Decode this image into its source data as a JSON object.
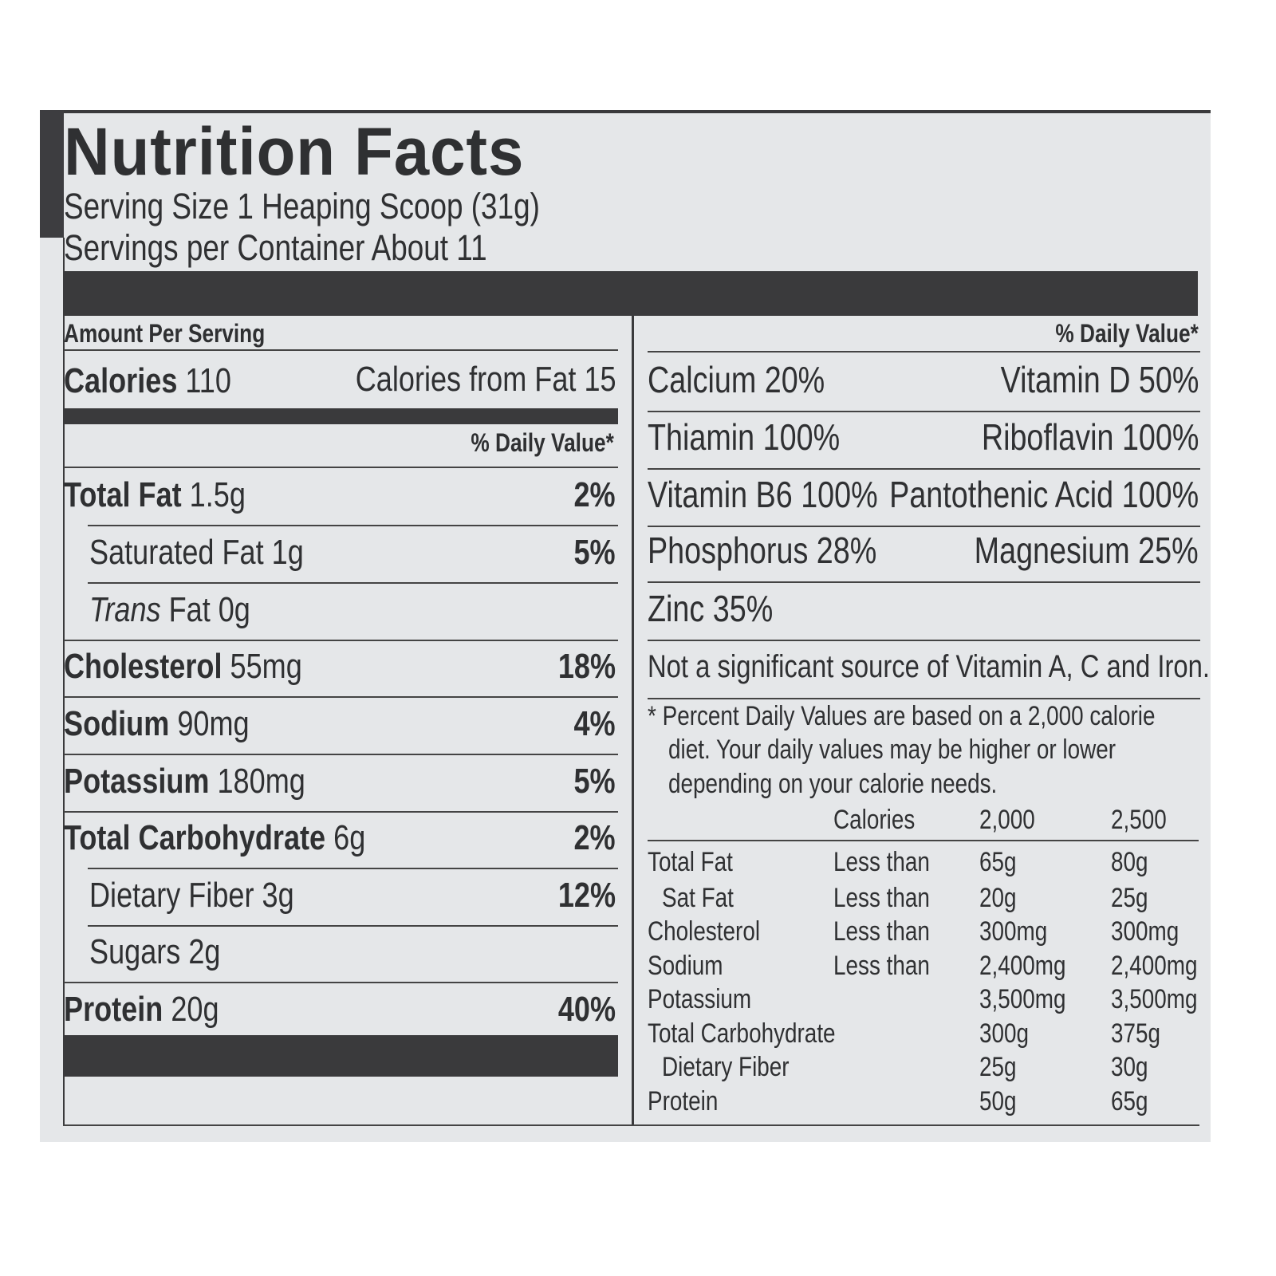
{
  "title": "Nutrition Facts",
  "serving_size": "Serving Size 1 Heaping Scoop (31g)",
  "servings_per_container": "Servings per Container About 11",
  "amount_per_serving": "Amount Per Serving",
  "calories": {
    "label": "Calories",
    "value": "110",
    "from_fat": "Calories from Fat 15"
  },
  "daily_value_header": "% Daily Value*",
  "nutrients": [
    {
      "bold": "Total Fat",
      "amount": "1.5g",
      "dv": "2%",
      "indent": false
    },
    {
      "bold": "",
      "amount": "Saturated Fat 1g",
      "dv": "5%",
      "indent": true
    },
    {
      "italic": "Trans",
      "amount": "Fat 0g",
      "dv": "",
      "indent": true
    },
    {
      "bold": "Cholesterol",
      "amount": "55mg",
      "dv": "18%",
      "indent": false
    },
    {
      "bold": "Sodium",
      "amount": "90mg",
      "dv": "4%",
      "indent": false
    },
    {
      "bold": "Potassium",
      "amount": "180mg",
      "dv": "5%",
      "indent": false
    },
    {
      "bold": "Total Carbohydrate",
      "amount": "6g",
      "dv": "2%",
      "indent": false
    },
    {
      "bold": "",
      "amount": "Dietary Fiber 3g",
      "dv": "12%",
      "indent": true
    },
    {
      "bold": "",
      "amount": "Sugars 2g",
      "dv": "",
      "indent": true
    },
    {
      "bold": "Protein",
      "amount": "20g",
      "dv": "40%",
      "indent": false
    }
  ],
  "vitamins_header": "% Daily Value*",
  "vitamins": [
    [
      "Calcium 20%",
      "Vitamin D 50%"
    ],
    [
      "Thiamin 100%",
      "Riboflavin 100%"
    ],
    [
      "Vitamin B6 100%",
      "Pantothenic Acid 100%"
    ],
    [
      "Phosphorus 28%",
      "Magnesium 25%"
    ],
    [
      "Zinc 35%",
      ""
    ],
    [
      "Not a significant source of Vitamin A, C and Iron.",
      ""
    ]
  ],
  "footnote": [
    "* Percent Daily Values are based on a 2,000 calorie",
    "diet. Your daily values may be higher or lower",
    "depending on your calorie needs."
  ],
  "dv_table": {
    "header": [
      "",
      "Calories",
      "2,000",
      "2,500"
    ],
    "rows": [
      [
        "Total Fat",
        "Less than",
        "65g",
        "80g"
      ],
      [
        " Sat Fat",
        "Less than",
        "20g",
        "25g"
      ],
      [
        "Cholesterol",
        "Less than",
        "300mg",
        "300mg"
      ],
      [
        "Sodium",
        "Less than",
        "2,400mg",
        "2,400mg"
      ],
      [
        "Potassium",
        "",
        "3,500mg",
        "3,500mg"
      ],
      [
        "Total Carbohydrate",
        "",
        "300g",
        "375g"
      ],
      [
        " Dietary Fiber",
        "",
        "25g",
        "30g"
      ],
      [
        "Protein",
        "",
        "50g",
        "65g"
      ]
    ]
  }
}
